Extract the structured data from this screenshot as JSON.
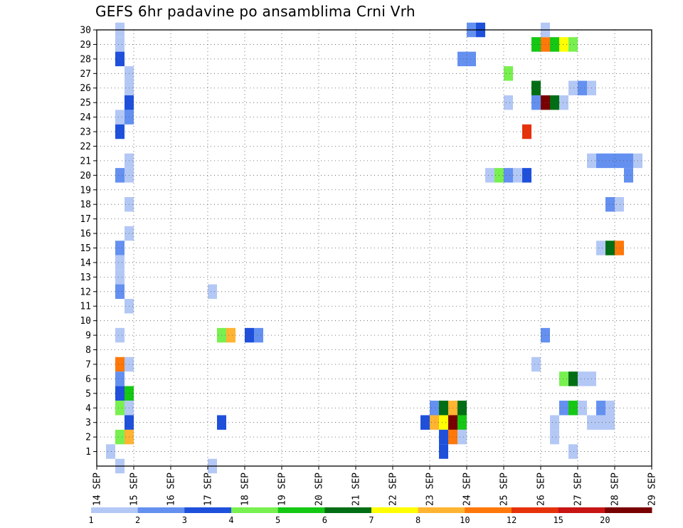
{
  "chart_data": {
    "type": "heatmap",
    "title": "GEFS 6hr padavine po ansamblima Crni Vrh",
    "x_tick_labels": [
      "14 SEP",
      "15 SEP",
      "16 SEP",
      "17 SEP",
      "18 SEP",
      "19 SEP",
      "20 SEP",
      "21 SEP",
      "22 SEP",
      "23 SEP",
      "24 SEP",
      "25 SEP",
      "26 SEP",
      "27 SEP",
      "28 SEP",
      "29 SEP"
    ],
    "y_tick_labels": [
      "1",
      "2",
      "3",
      "4",
      "5",
      "6",
      "7",
      "8",
      "9",
      "10",
      "11",
      "12",
      "13",
      "14",
      "15",
      "16",
      "17",
      "18",
      "19",
      "20",
      "21",
      "22",
      "23",
      "24",
      "25",
      "26",
      "27",
      "28",
      "29",
      "30"
    ],
    "x_range_days": [
      0,
      15
    ],
    "y_range_members": [
      0,
      30
    ],
    "grid": "dotted",
    "colorbar": {
      "labels": [
        "1",
        "2",
        "3",
        "4",
        "5",
        "6",
        "7",
        "8",
        "10",
        "12",
        "15",
        "20"
      ],
      "colors": [
        "#b4c8f5",
        "#6490f0",
        "#1e50dc",
        "#78f050",
        "#14c814",
        "#006e14",
        "#ffff00",
        "#ffb432",
        "#ff780a",
        "#e6320a",
        "#c81414",
        "#780000"
      ]
    },
    "cells": [
      [
        0.625,
        30,
        0
      ],
      [
        0.625,
        29,
        0
      ],
      [
        0.625,
        28,
        2
      ],
      [
        0.875,
        27,
        0
      ],
      [
        0.875,
        26,
        0
      ],
      [
        0.875,
        25,
        2
      ],
      [
        0.625,
        24,
        0
      ],
      [
        0.875,
        24,
        1
      ],
      [
        0.625,
        23,
        2
      ],
      [
        0.875,
        21,
        0
      ],
      [
        0.625,
        20,
        1
      ],
      [
        0.875,
        20,
        0
      ],
      [
        0.875,
        18,
        0
      ],
      [
        0.875,
        16,
        0
      ],
      [
        0.625,
        15,
        1
      ],
      [
        0.625,
        14,
        0
      ],
      [
        0.625,
        13,
        0
      ],
      [
        0.625,
        12,
        1
      ],
      [
        0.875,
        11,
        0
      ],
      [
        0.625,
        9,
        0
      ],
      [
        0.625,
        7,
        8
      ],
      [
        0.875,
        7,
        0
      ],
      [
        0.625,
        6,
        1
      ],
      [
        0.625,
        5,
        2
      ],
      [
        0.875,
        5,
        4
      ],
      [
        0.625,
        4,
        3
      ],
      [
        0.875,
        4,
        0
      ],
      [
        0.875,
        3,
        2
      ],
      [
        0.625,
        2,
        3
      ],
      [
        0.875,
        2,
        7
      ],
      [
        0.375,
        1,
        0
      ],
      [
        0.625,
        0,
        0
      ],
      [
        3.125,
        12,
        0
      ],
      [
        3.125,
        0,
        0
      ],
      [
        3.375,
        3,
        2
      ],
      [
        3.375,
        9,
        3
      ],
      [
        3.625,
        9,
        7
      ],
      [
        4.125,
        9,
        2
      ],
      [
        4.375,
        9,
        1
      ],
      [
        9.125,
        4,
        1
      ],
      [
        9.375,
        4,
        5
      ],
      [
        9.625,
        4,
        7
      ],
      [
        9.875,
        4,
        5
      ],
      [
        8.875,
        3,
        2
      ],
      [
        9.125,
        3,
        7
      ],
      [
        9.375,
        3,
        6
      ],
      [
        9.625,
        3,
        11
      ],
      [
        9.875,
        3,
        4
      ],
      [
        9.375,
        2,
        2
      ],
      [
        9.625,
        2,
        8
      ],
      [
        9.875,
        2,
        0
      ],
      [
        9.375,
        1,
        2
      ],
      [
        10.125,
        30,
        1
      ],
      [
        10.375,
        30,
        2
      ],
      [
        9.875,
        28,
        1
      ],
      [
        10.125,
        28,
        1
      ],
      [
        10.625,
        20,
        0
      ],
      [
        10.875,
        20,
        3
      ],
      [
        11.125,
        20,
        1
      ],
      [
        11.375,
        20,
        0
      ],
      [
        11.625,
        20,
        2
      ],
      [
        11.125,
        25,
        0
      ],
      [
        11.125,
        27,
        3
      ],
      [
        11.625,
        23,
        9
      ],
      [
        11.875,
        29,
        4
      ],
      [
        12.125,
        29,
        8
      ],
      [
        12.375,
        29,
        4
      ],
      [
        12.625,
        29,
        6
      ],
      [
        12.875,
        29,
        3
      ],
      [
        12.125,
        30,
        0
      ],
      [
        11.875,
        26,
        5
      ],
      [
        11.875,
        25,
        1
      ],
      [
        12.125,
        25,
        11
      ],
      [
        12.375,
        25,
        5
      ],
      [
        12.625,
        25,
        0
      ],
      [
        12.875,
        26,
        0
      ],
      [
        13.125,
        26,
        1
      ],
      [
        13.375,
        26,
        0
      ],
      [
        12.125,
        9,
        1
      ],
      [
        11.875,
        7,
        0
      ],
      [
        12.625,
        6,
        3
      ],
      [
        12.875,
        6,
        5
      ],
      [
        13.125,
        6,
        0
      ],
      [
        13.375,
        6,
        0
      ],
      [
        12.625,
        4,
        1
      ],
      [
        12.875,
        4,
        4
      ],
      [
        13.125,
        4,
        0
      ],
      [
        13.625,
        4,
        1
      ],
      [
        13.875,
        4,
        0
      ],
      [
        12.375,
        3,
        0
      ],
      [
        13.375,
        3,
        0
      ],
      [
        13.625,
        3,
        0
      ],
      [
        13.875,
        3,
        0
      ],
      [
        12.375,
        2,
        0
      ],
      [
        12.875,
        1,
        0
      ],
      [
        13.375,
        21,
        0
      ],
      [
        13.625,
        21,
        1
      ],
      [
        13.875,
        21,
        1
      ],
      [
        14.125,
        21,
        1
      ],
      [
        14.375,
        21,
        1
      ],
      [
        14.625,
        21,
        0
      ],
      [
        14.375,
        20,
        1
      ],
      [
        13.875,
        18,
        1
      ],
      [
        14.125,
        18,
        0
      ],
      [
        13.625,
        15,
        0
      ],
      [
        13.875,
        15,
        5
      ],
      [
        14.125,
        15,
        8
      ]
    ]
  }
}
